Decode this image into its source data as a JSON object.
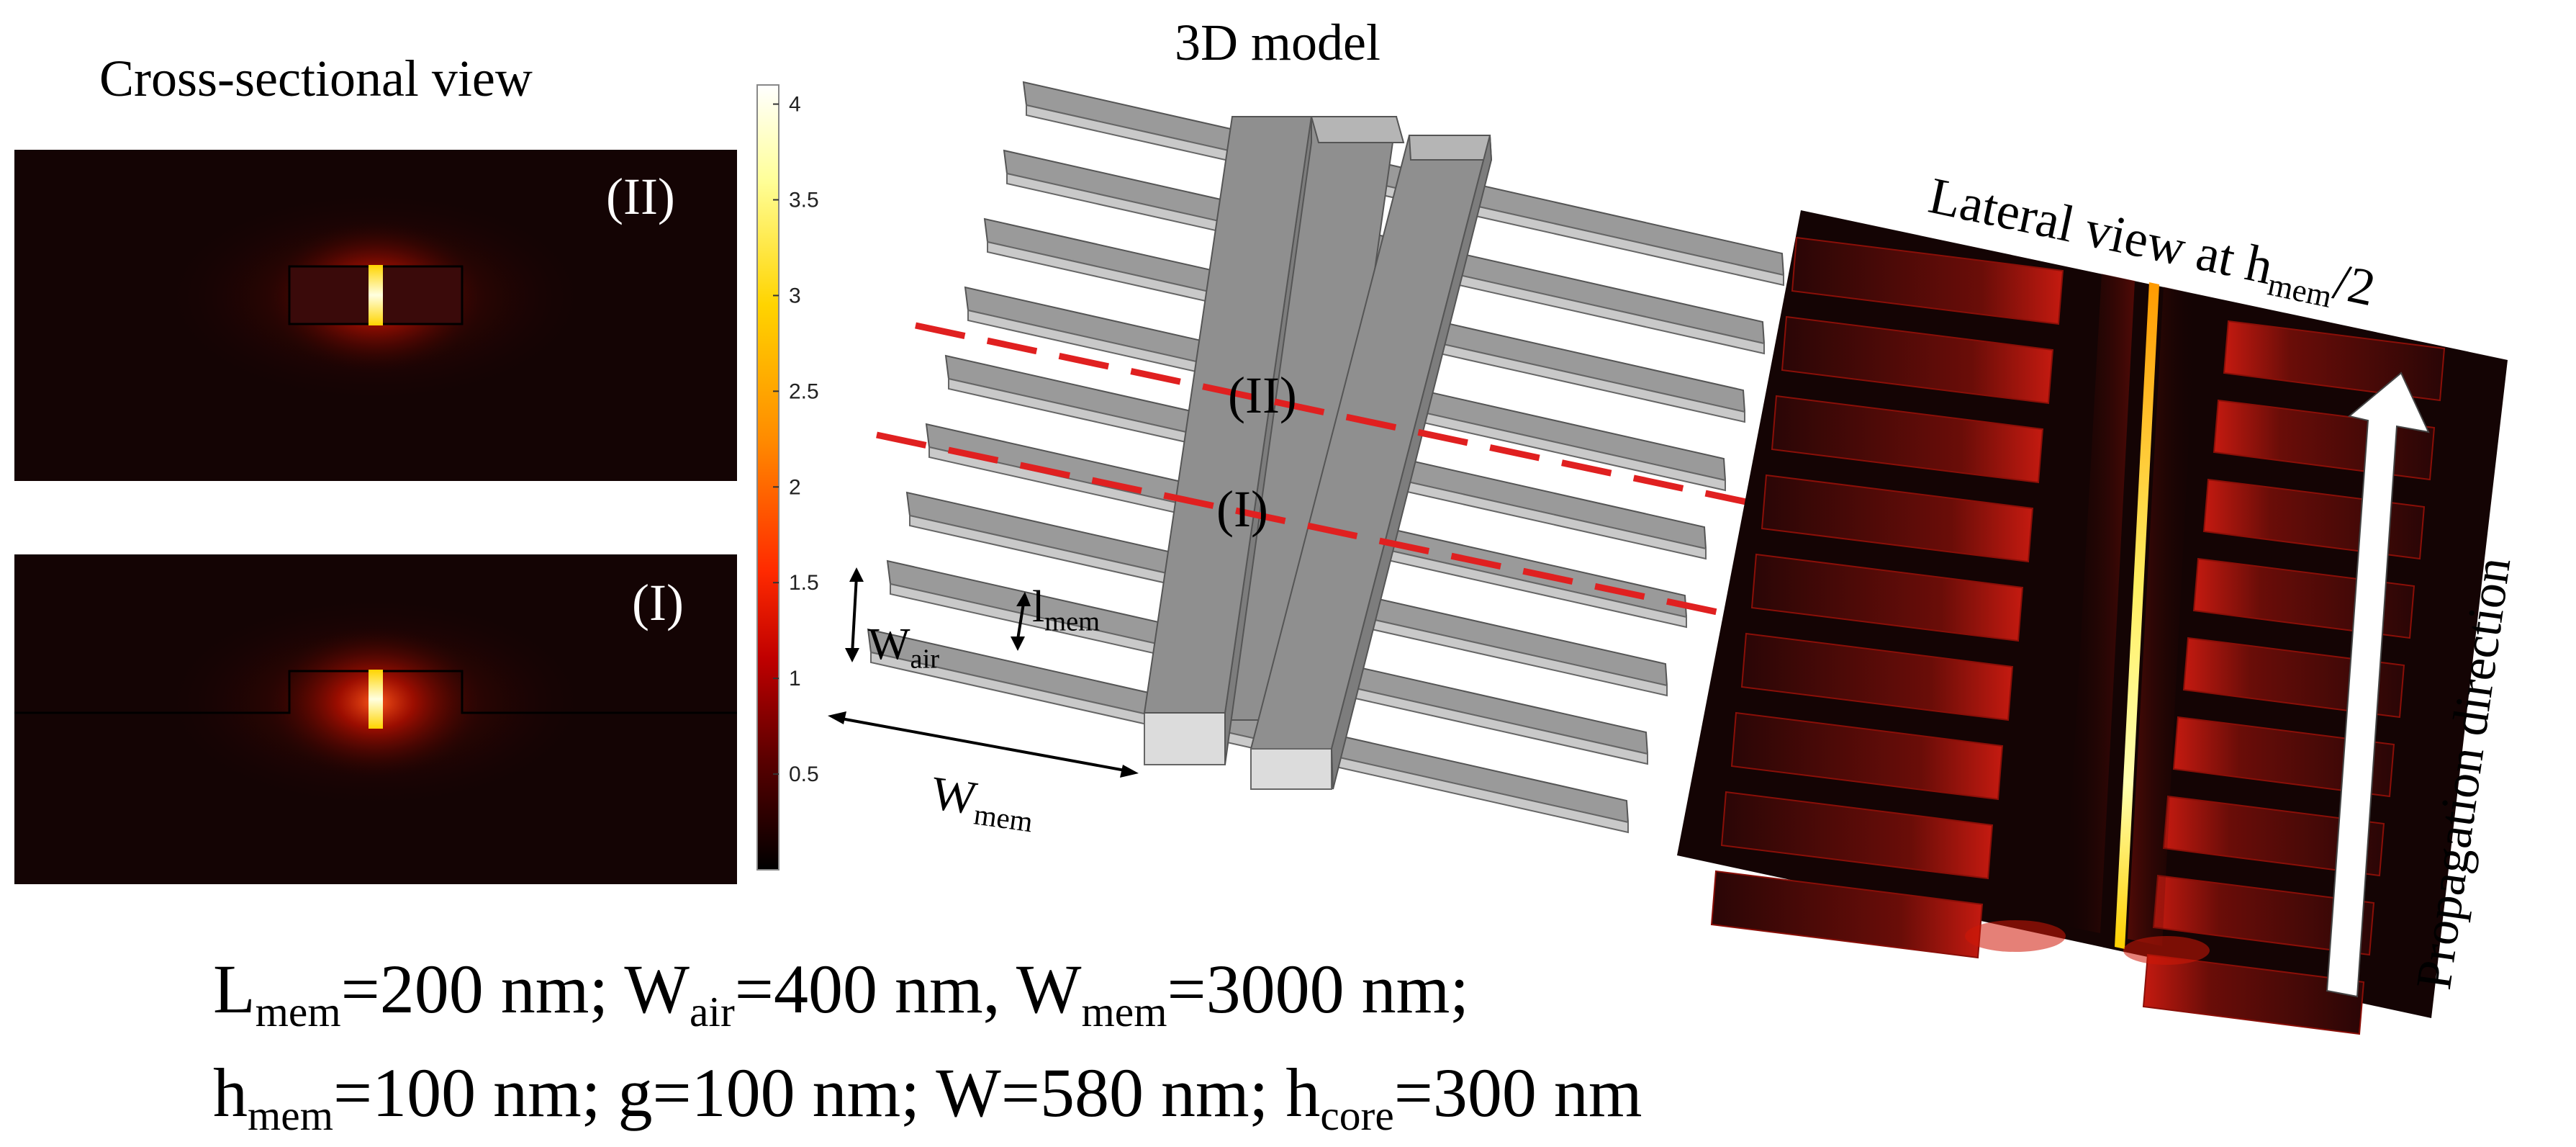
{
  "titles": {
    "cross_section": "Cross-sectional view",
    "model_3d": "3D model",
    "lateral": "Lateral view at h",
    "lateral_sub": "mem",
    "lateral_tail": "/2"
  },
  "panel_labels": {
    "section_II": "(II)",
    "section_I": "(I)",
    "model_II": "(II)",
    "model_I": "(I)"
  },
  "dimension_labels": {
    "l_mem": "l",
    "l_mem_sub": "mem",
    "w_air": "W",
    "w_air_sub": "air",
    "w_mem": "W",
    "w_mem_sub": "mem"
  },
  "colorbar": {
    "ticks": [
      "4",
      "3.5",
      "3",
      "2.5",
      "2",
      "1.5",
      "1",
      "0.5"
    ],
    "tick_values": [
      4,
      3.5,
      3,
      2.5,
      2,
      1.5,
      1,
      0.5
    ],
    "min": 0,
    "max": 4.1,
    "colors": [
      "#000000",
      "#5a0000",
      "#c00000",
      "#ff2a00",
      "#ff8c00",
      "#ffd400",
      "#ffff9a",
      "#ffffff"
    ]
  },
  "propagation": {
    "label": "Propagation direction"
  },
  "parameters": {
    "line1": [
      {
        "t": "L",
        "s": "mem"
      },
      {
        "t": "=200 nm; W",
        "s": "air"
      },
      {
        "t": "=400 nm, W",
        "s": "mem"
      },
      {
        "t": "=3000 nm;",
        "s": ""
      }
    ],
    "line2": [
      {
        "t": "h",
        "s": "mem"
      },
      {
        "t": "=100 nm; g=100 nm; W=580 nm; h",
        "s": "core"
      },
      {
        "t": "=300 nm",
        "s": ""
      }
    ]
  },
  "colors": {
    "field_dark": "#120404",
    "bar_gray": "#8f8f8f",
    "bar_top": "#a3a3a3",
    "cut_line": "#e02020",
    "arrow": "#ffffff"
  }
}
